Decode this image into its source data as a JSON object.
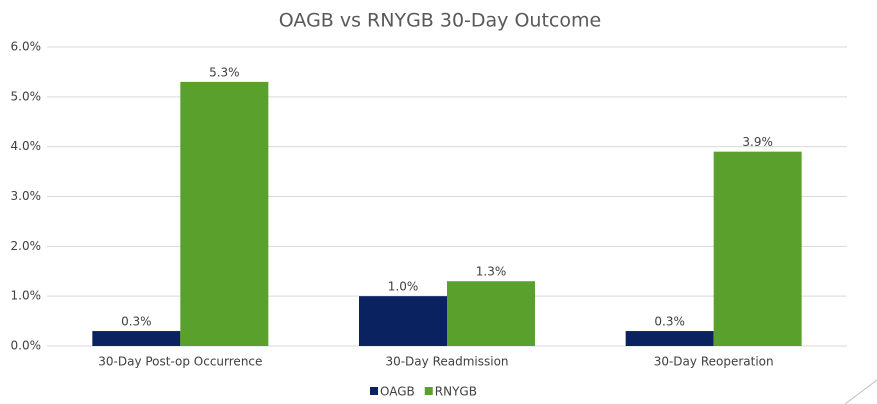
{
  "chart_data": {
    "type": "bar",
    "title": "OAGB vs RNYGB 30-Day Outcome",
    "categories": [
      "30-Day Post-op Occurrence",
      "30-Day Readmission",
      "30-Day Reoperation"
    ],
    "series": [
      {
        "name": "OAGB",
        "color": "#0b2260",
        "values": [
          0.3,
          1.0,
          0.3
        ],
        "value_labels": [
          "0.3%",
          "1.0%",
          "0.3%"
        ]
      },
      {
        "name": "RNYGB",
        "color": "#5aa02c",
        "values": [
          5.3,
          1.3,
          3.9
        ],
        "value_labels": [
          "5.3%",
          "1.3%",
          "3.9%"
        ]
      }
    ],
    "ylim": [
      0,
      6
    ],
    "yticks": [
      {
        "value": 0,
        "label": "0.0%"
      },
      {
        "value": 1,
        "label": "1.0%"
      },
      {
        "value": 2,
        "label": "2.0%"
      },
      {
        "value": 3,
        "label": "3.0%"
      },
      {
        "value": 4,
        "label": "4.0%"
      },
      {
        "value": 5,
        "label": "5.0%"
      },
      {
        "value": 6,
        "label": "6.0%"
      }
    ],
    "grid": true,
    "legend": "bottom"
  }
}
